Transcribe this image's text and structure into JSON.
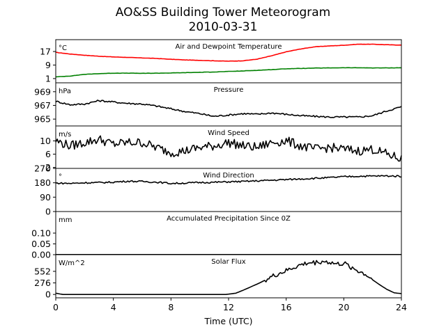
{
  "figure": {
    "title": "AO&SS Building Tower Meteorogram",
    "subtitle": "2010-03-31",
    "xlabel": "Time (UTC)"
  },
  "chart_data": [
    {
      "type": "line",
      "title": "Air and Dewpoint Temperature",
      "ylabel": "°C",
      "ylim": [
        -1.5,
        24
      ],
      "yticks": [
        "1",
        "9",
        "17"
      ],
      "ytick_values": [
        1,
        9,
        17
      ],
      "x": [
        0,
        1,
        2,
        3,
        4,
        5,
        6,
        7,
        8,
        9,
        10,
        11,
        12,
        13,
        14,
        15,
        16,
        17,
        18,
        19,
        20,
        21,
        22,
        23,
        24
      ],
      "series": [
        {
          "color": "#ff0000",
          "values": [
            16.5,
            15.5,
            14.8,
            14.2,
            13.8,
            13.5,
            13.2,
            12.9,
            12.4,
            12.0,
            11.8,
            11.5,
            11.3,
            11.5,
            12.5,
            14.5,
            16.8,
            18.5,
            19.8,
            20.3,
            20.7,
            21.3,
            21.3,
            21.0,
            20.8
          ]
        },
        {
          "color": "#008000",
          "values": [
            2.0,
            2.5,
            3.5,
            3.9,
            4.2,
            4.2,
            4.1,
            4.2,
            4.3,
            4.5,
            4.7,
            4.9,
            5.2,
            5.5,
            5.9,
            6.3,
            6.8,
            7.0,
            7.2,
            7.3,
            7.4,
            7.4,
            7.3,
            7.3,
            7.4
          ]
        }
      ]
    },
    {
      "type": "line",
      "title": "Pressure",
      "ylabel": "hPa",
      "ylim": [
        964.0,
        970.3
      ],
      "yticks": [
        "965",
        "967",
        "969"
      ],
      "ytick_values": [
        965,
        967,
        969
      ],
      "x": [
        0,
        1,
        2,
        3,
        4,
        5,
        6,
        7,
        8,
        9,
        10,
        11,
        12,
        13,
        14,
        15,
        16,
        17,
        18,
        19,
        20,
        21,
        22,
        23,
        24
      ],
      "series": [
        {
          "color": "#000000",
          "values": [
            967.6,
            967.1,
            967.2,
            967.7,
            967.5,
            967.3,
            967.2,
            966.9,
            966.5,
            966.1,
            965.8,
            965.4,
            965.6,
            965.8,
            965.7,
            965.9,
            965.7,
            965.5,
            965.4,
            965.3,
            965.3,
            965.3,
            965.5,
            966.2,
            966.8
          ]
        }
      ]
    },
    {
      "type": "line",
      "title": "Wind Speed",
      "ylabel": "m/s",
      "ylim": [
        1.5,
        14.5
      ],
      "yticks": [
        "2",
        "6",
        "10"
      ],
      "ytick_values": [
        2,
        6,
        10
      ],
      "x": [
        0,
        1,
        2,
        3,
        4,
        5,
        6,
        7,
        8,
        9,
        10,
        11,
        12,
        13,
        14,
        15,
        16,
        17,
        18,
        19,
        20,
        21,
        22,
        23,
        24
      ],
      "series": [
        {
          "color": "#000000",
          "values": [
            10.0,
            8.5,
            9.5,
            10.5,
            9.0,
            9.5,
            9.5,
            8.0,
            6.5,
            7.0,
            8.0,
            8.5,
            9.5,
            8.5,
            8.0,
            9.5,
            10.0,
            8.5,
            7.5,
            8.0,
            7.5,
            7.0,
            7.5,
            6.0,
            4.5
          ]
        }
      ]
    },
    {
      "type": "line",
      "title": "Wind Direction",
      "ylabel": "°",
      "ylim": [
        0,
        270
      ],
      "yticks": [
        "0",
        "90",
        "180",
        "270"
      ],
      "ytick_values": [
        0,
        90,
        180,
        270
      ],
      "x": [
        0,
        1,
        2,
        3,
        4,
        5,
        6,
        7,
        8,
        9,
        10,
        11,
        12,
        13,
        14,
        15,
        16,
        17,
        18,
        19,
        20,
        21,
        22,
        23,
        24
      ],
      "series": [
        {
          "color": "#000000",
          "values": [
            178,
            176,
            180,
            181,
            184,
            190,
            188,
            184,
            176,
            178,
            182,
            183,
            186,
            188,
            192,
            196,
            200,
            204,
            208,
            212,
            218,
            221,
            222,
            223,
            221
          ]
        }
      ]
    },
    {
      "type": "line",
      "title": "Accumulated Precipitation Since 0Z",
      "ylabel": "mm",
      "ylim": [
        0,
        0.2
      ],
      "yticks": [
        "0.00",
        "0.05",
        "0.10"
      ],
      "ytick_values": [
        0,
        0.05,
        0.1
      ],
      "x": [
        0,
        24
      ],
      "series": [
        {
          "color": "#000000",
          "values": [
            0,
            0
          ]
        }
      ]
    },
    {
      "type": "line",
      "title": "Solar Flux",
      "ylabel": "W/m^2",
      "ylim": [
        -80,
        950
      ],
      "yticks": [
        "0",
        "276",
        "552"
      ],
      "ytick_values": [
        0,
        276,
        552
      ],
      "x": [
        0,
        0.5,
        1,
        2,
        4,
        6,
        8,
        10,
        11.8,
        12.5,
        13,
        14,
        15,
        15.5,
        16,
        16.5,
        17,
        17.5,
        18,
        18.5,
        19,
        19.5,
        20,
        20.5,
        21,
        21.5,
        22,
        22.5,
        23,
        23.5,
        24
      ],
      "series": [
        {
          "color": "#000000",
          "values": [
            30,
            0,
            0,
            0,
            0,
            0,
            0,
            0,
            0,
            30,
            100,
            250,
            420,
            500,
            560,
            640,
            700,
            750,
            760,
            790,
            770,
            720,
            740,
            650,
            560,
            480,
            350,
            230,
            120,
            40,
            20
          ]
        }
      ]
    }
  ],
  "xaxis": {
    "xlim": [
      0,
      24
    ],
    "ticks": [
      "0",
      "4",
      "8",
      "12",
      "16",
      "20",
      "24"
    ],
    "tick_values": [
      0,
      4,
      8,
      12,
      16,
      20,
      24
    ]
  }
}
